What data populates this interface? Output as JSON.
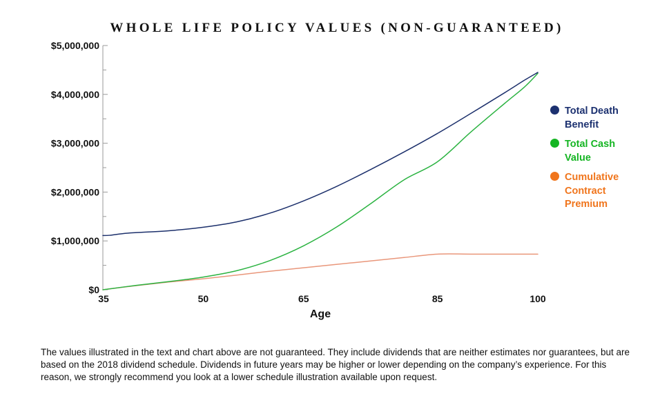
{
  "chart_data": {
    "type": "line",
    "title": "WHOLE LIFE POLICY VALUES (NON-GUARANTEED)",
    "xlabel": "Age",
    "ylabel": "",
    "xlim": [
      35,
      100
    ],
    "ylim": [
      0,
      5000000
    ],
    "x_ticks": [
      {
        "value": 35,
        "label": "35"
      },
      {
        "value": 50,
        "label": "50"
      },
      {
        "value": 65,
        "label": "65"
      },
      {
        "value": 85,
        "label": "85"
      },
      {
        "value": 100,
        "label": "100"
      }
    ],
    "y_ticks": [
      {
        "value": 0,
        "label": "$0"
      },
      {
        "value": 1000000,
        "label": "$1,000,000"
      },
      {
        "value": 2000000,
        "label": "$2,000,000"
      },
      {
        "value": 3000000,
        "label": "$3,000,000"
      },
      {
        "value": 4000000,
        "label": "$4,000,000"
      },
      {
        "value": 5000000,
        "label": "$5,000,000"
      }
    ],
    "grid": false,
    "legend_position": "right",
    "series": [
      {
        "name": "Total Death Benefit",
        "color": "#1b2f6b",
        "x": [
          35,
          36,
          38,
          40,
          45,
          50,
          55,
          60,
          65,
          70,
          75,
          80,
          85,
          90,
          95,
          98,
          100
        ],
        "values": [
          1110000,
          1115000,
          1150000,
          1170000,
          1210000,
          1280000,
          1390000,
          1570000,
          1820000,
          2120000,
          2460000,
          2820000,
          3200000,
          3610000,
          4030000,
          4290000,
          4450000
        ]
      },
      {
        "name": "Total Cash Value",
        "color": "#2bb341",
        "x": [
          35,
          40,
          45,
          50,
          55,
          60,
          65,
          70,
          75,
          80,
          85,
          90,
          95,
          98,
          100
        ],
        "values": [
          0,
          90000,
          170000,
          260000,
          390000,
          600000,
          900000,
          1290000,
          1760000,
          2250000,
          2620000,
          3230000,
          3810000,
          4150000,
          4430000
        ]
      },
      {
        "name": "Cumulative Contract Premium",
        "color": "#e9967a",
        "x": [
          35,
          40,
          45,
          50,
          55,
          60,
          65,
          70,
          75,
          80,
          85,
          90,
          95,
          100
        ],
        "values": [
          0,
          85000,
          160000,
          225000,
          300000,
          380000,
          450000,
          520000,
          590000,
          660000,
          730000,
          730000,
          730000,
          730000
        ]
      }
    ]
  },
  "legend": {
    "items": [
      {
        "label": "Total Death Benefit",
        "dot_color": "#1c3170",
        "text_color": "#1c3170"
      },
      {
        "label": "Total Cash Value",
        "dot_color": "#15b523",
        "text_color": "#15b523"
      },
      {
        "label": "Cumulative Contract Premium",
        "dot_color": "#f0751c",
        "text_color": "#f0751c"
      }
    ]
  },
  "footnote": "The values illustrated in the text and chart above are not guaranteed. They include dividends that are neither estimates nor guarantees, but are based on the 2018 dividend schedule. Dividends in future years may be higher or lower depending on the company’s experience. For this reason, we strongly recommend you look at a lower schedule illustration available upon request."
}
